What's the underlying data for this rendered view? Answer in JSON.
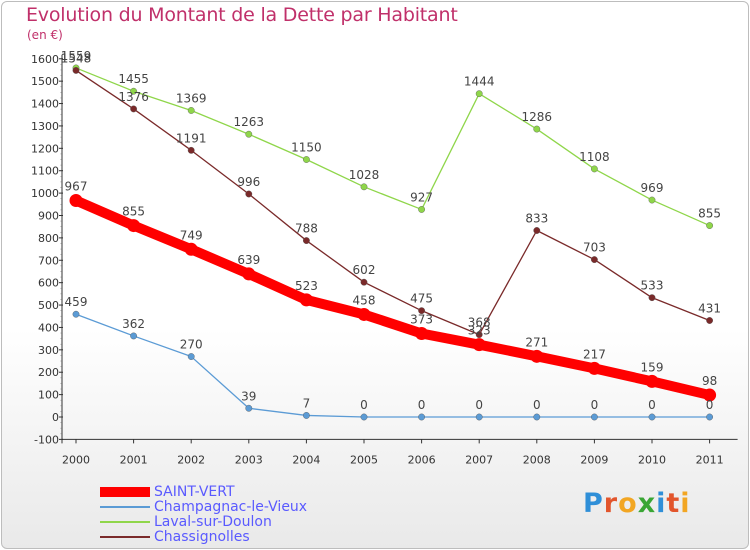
{
  "title": "Evolution du Montant de la Dette par Habitant",
  "subtitle": "(en €)",
  "logo": {
    "text": "Proxiti",
    "letter_colors": [
      "#2f8fd8",
      "#e2552c",
      "#f2a623",
      "#3aa635",
      "#2f8fd8",
      "#e2552c",
      "#f2a623"
    ]
  },
  "chart_data": {
    "type": "line",
    "x": [
      "2000",
      "2001",
      "2002",
      "2003",
      "2004",
      "2005",
      "2006",
      "2007",
      "2008",
      "2009",
      "2010",
      "2011"
    ],
    "yticks": [
      "-100",
      "0",
      "100",
      "200",
      "300",
      "400",
      "500",
      "600",
      "700",
      "800",
      "900",
      "1000",
      "1100",
      "1200",
      "1300",
      "1400",
      "1500",
      "1600"
    ],
    "ylim": [
      -100,
      1600
    ],
    "grid": false,
    "legend_position": "bottom-left",
    "series": [
      {
        "name": "SAINT-VERT",
        "color": "#ff0000",
        "values": [
          967,
          855,
          749,
          639,
          523,
          458,
          373,
          323,
          271,
          217,
          159,
          98
        ],
        "labels": [
          "967",
          "855",
          "749",
          "639",
          "523",
          "458",
          "373",
          "323",
          "271",
          "217",
          "159",
          "98"
        ],
        "emphasis": true
      },
      {
        "name": "Champagnac-le-Vieux",
        "color": "#5b9bd5",
        "values": [
          459,
          362,
          270,
          39,
          7,
          0,
          0,
          0,
          0,
          0,
          0,
          0
        ],
        "labels": [
          "459",
          "362",
          "270",
          "39",
          "7",
          "0",
          "0",
          "0",
          "0",
          "0",
          "0",
          "0"
        ]
      },
      {
        "name": "Laval-sur-Doulon",
        "color": "#8fd64a",
        "values": [
          1559,
          1455,
          1369,
          1263,
          1150,
          1028,
          927,
          1444,
          1286,
          1108,
          969,
          855
        ],
        "labels": [
          "1559",
          "1455",
          "1369",
          "1263",
          "1150",
          "1028",
          "927",
          "1444",
          "1286",
          "1108",
          "969",
          "855"
        ]
      },
      {
        "name": "Chassignolles",
        "color": "#7a2a2a",
        "values": [
          1548,
          1376,
          1191,
          996,
          788,
          602,
          475,
          368,
          833,
          703,
          533,
          431
        ],
        "labels": [
          "1548",
          "1376",
          "1191",
          "996",
          "788",
          "602",
          "475",
          "368",
          "833",
          "703",
          "533",
          "431"
        ]
      }
    ]
  }
}
